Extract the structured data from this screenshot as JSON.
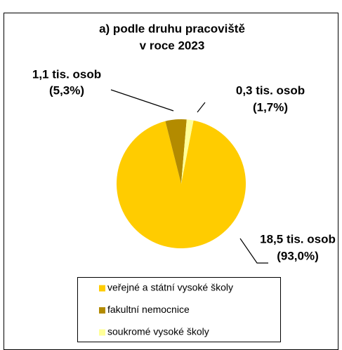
{
  "chart_data": {
    "type": "pie",
    "title": [
      "a) podle druhu pracoviště",
      "v roce 2023"
    ],
    "categories": [
      "veřejné a státní vysoké školy",
      "fakultní nemocnice",
      "soukromé vysoké školy"
    ],
    "values": [
      93.0,
      5.3,
      1.7
    ],
    "value_labels": [
      [
        "18,5 tis. osob",
        "(93,0%)"
      ],
      [
        "1,1 tis. osob",
        "(5,3%)"
      ],
      [
        "0,3 tis. osob",
        "(1,7%)"
      ]
    ],
    "colors": [
      "#ffcc00",
      "#b38b00",
      "#ffff99"
    ],
    "legend": "bottom"
  }
}
